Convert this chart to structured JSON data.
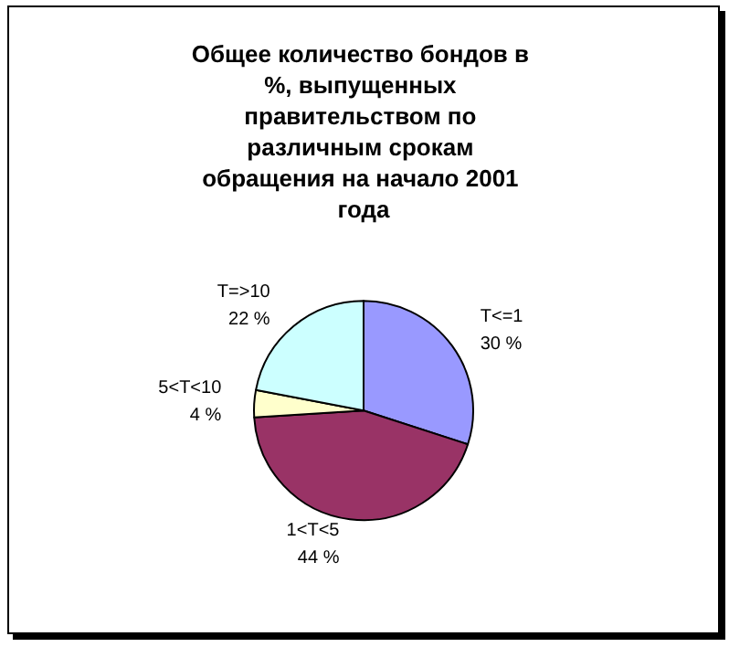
{
  "chart_data": {
    "type": "pie",
    "title": "Общее количество бондов в %, выпущенных правительством по различным срокам обращения на начало 2001 года",
    "categories": [
      "T<=1",
      "1<T<5",
      "5<T<10",
      "T=>10"
    ],
    "values": [
      30,
      44,
      4,
      22
    ],
    "value_labels": [
      "30 %",
      "44 %",
      "4 %",
      "22 %"
    ],
    "colors": [
      "#9999ff",
      "#993366",
      "#ffffcc",
      "#ccffff"
    ],
    "legend": false
  }
}
